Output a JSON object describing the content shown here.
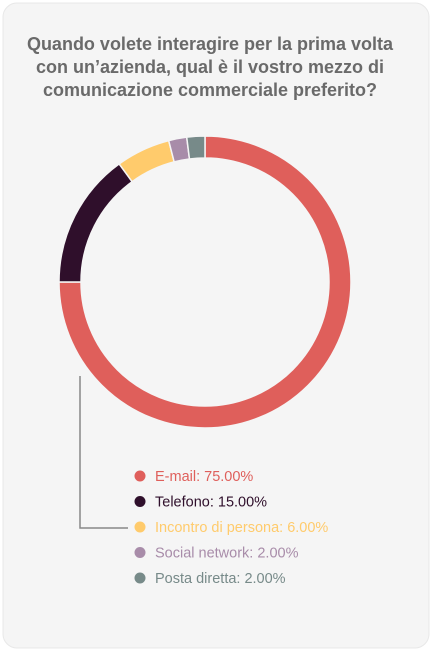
{
  "chart_data": {
    "type": "donut",
    "title": [
      "Quando volete interagire per la prima volta",
      "con un’azienda, qual è il vostro mezzo di",
      "comunicazione commerciale preferito?"
    ],
    "labels": [
      "E-mail: 75.00%",
      "Telefono: 15.00%",
      "Incontro di persona: 6.00%",
      "Social network: 2.00%",
      "Posta diretta: 2.00%"
    ],
    "values": [
      75,
      15,
      6,
      2,
      2
    ],
    "colors": [
      "#df5f5b",
      "#2f0f2b",
      "#ffcb6c",
      "#a88ca9",
      "#778a89"
    ]
  }
}
